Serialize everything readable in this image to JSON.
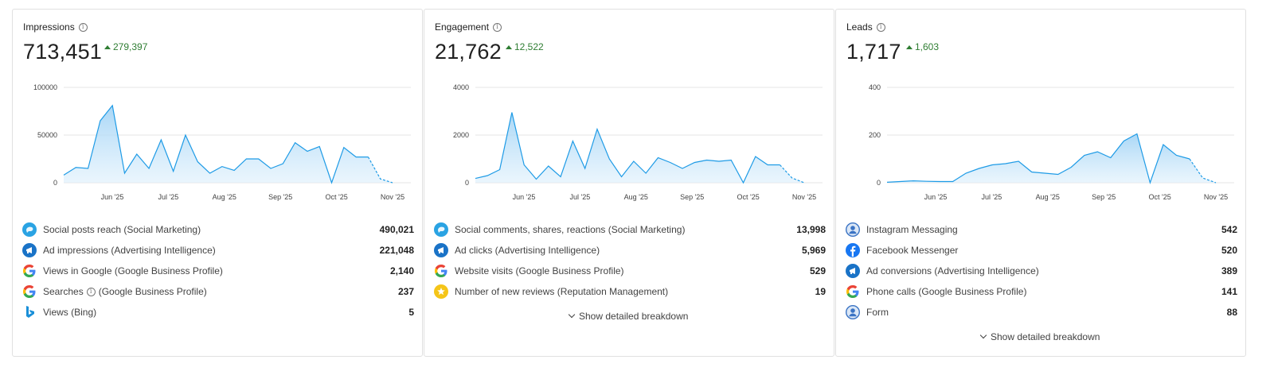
{
  "colors": {
    "accent": "#1e9be6",
    "fill": "#bfe1f8",
    "positive": "#2e7d32"
  },
  "cards": [
    {
      "title": "Impressions",
      "value": "713,451",
      "delta": "279,397",
      "chart_data": {
        "type": "area",
        "yticks": [
          "100000",
          "50000",
          "0"
        ],
        "ylim": [
          0,
          100000
        ],
        "xticks": [
          "Jun '25",
          "Jul '25",
          "Aug '25",
          "Sep '25",
          "Oct '25",
          "Nov '25"
        ],
        "values": [
          8000,
          16000,
          15000,
          65000,
          81000,
          10000,
          30000,
          15000,
          45000,
          12000,
          50000,
          22000,
          10000,
          17000,
          13000,
          25000,
          25000,
          15000,
          20000,
          42000,
          33000,
          38000,
          0,
          37000,
          27000,
          27000,
          4000,
          0
        ],
        "dashed_last": 2
      },
      "metrics": [
        {
          "icon": "social-marketing-icon",
          "label": "Social posts reach (Social Marketing)",
          "value": "490,021"
        },
        {
          "icon": "advertising-icon",
          "label": "Ad impressions (Advertising Intelligence)",
          "value": "221,048"
        },
        {
          "icon": "google-icon",
          "label": "Views in Google (Google Business Profile)",
          "value": "2,140"
        },
        {
          "icon": "google-icon",
          "label": "Searches",
          "label_suffix": "(Google Business Profile)",
          "value": "237"
        },
        {
          "icon": "bing-icon",
          "label": "Views (Bing)",
          "value": "5"
        }
      ]
    },
    {
      "title": "Engagement",
      "value": "21,762",
      "delta": "12,522",
      "chart_data": {
        "type": "area",
        "yticks": [
          "4000",
          "2000",
          "0"
        ],
        "ylim": [
          0,
          4000
        ],
        "xticks": [
          "Jun '25",
          "Jul '25",
          "Aug '25",
          "Sep '25",
          "Oct '25",
          "Nov '25"
        ],
        "values": [
          180,
          300,
          550,
          2950,
          750,
          150,
          700,
          250,
          1750,
          600,
          2250,
          1000,
          250,
          900,
          400,
          1050,
          850,
          600,
          850,
          950,
          900,
          950,
          0,
          1100,
          750,
          750,
          200,
          0
        ],
        "dashed_last": 2
      },
      "metrics": [
        {
          "icon": "social-marketing-icon",
          "label": "Social comments, shares, reactions (Social Marketing)",
          "value": "13,998"
        },
        {
          "icon": "advertising-icon",
          "label": "Ad clicks (Advertising Intelligence)",
          "value": "5,969"
        },
        {
          "icon": "google-icon",
          "label": "Website visits (Google Business Profile)",
          "value": "529"
        },
        {
          "icon": "star-icon",
          "label": "Number of new reviews (Reputation Management)",
          "value": "19"
        }
      ],
      "breakdown": "Show detailed breakdown"
    },
    {
      "title": "Leads",
      "value": "1,717",
      "delta": "1,603",
      "chart_data": {
        "type": "area",
        "yticks": [
          "400",
          "200",
          "0"
        ],
        "ylim": [
          0,
          400
        ],
        "xticks": [
          "Jun '25",
          "Jul '25",
          "Aug '25",
          "Sep '25",
          "Oct '25",
          "Nov '25"
        ],
        "values": [
          2,
          5,
          8,
          6,
          5,
          5,
          40,
          60,
          75,
          80,
          90,
          45,
          40,
          35,
          65,
          115,
          130,
          105,
          175,
          205,
          0,
          160,
          115,
          100,
          20,
          0
        ],
        "dashed_last": 2
      },
      "metrics": [
        {
          "icon": "user-circle-icon",
          "label": "Instagram Messaging",
          "value": "542"
        },
        {
          "icon": "facebook-icon",
          "label": "Facebook Messenger",
          "value": "520"
        },
        {
          "icon": "advertising-icon",
          "label": "Ad conversions (Advertising Intelligence)",
          "value": "389"
        },
        {
          "icon": "google-icon",
          "label": "Phone calls (Google Business Profile)",
          "value": "141"
        },
        {
          "icon": "user-circle-icon",
          "label": "Form",
          "value": "88"
        }
      ],
      "breakdown": "Show detailed breakdown"
    }
  ]
}
